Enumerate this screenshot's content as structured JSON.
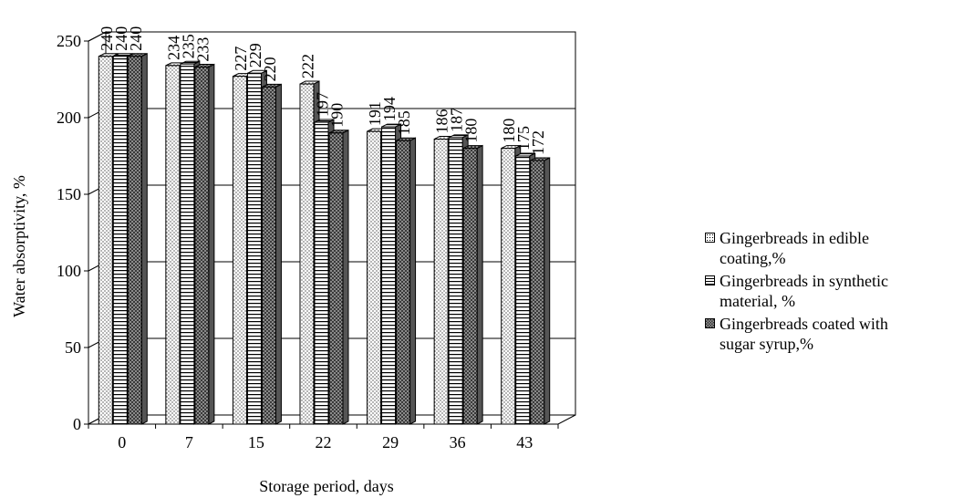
{
  "chart_data": {
    "type": "bar",
    "categories": [
      "0",
      "7",
      "15",
      "22",
      "29",
      "36",
      "43"
    ],
    "series": [
      {
        "name": "Gingerbreads in edible coating,%",
        "values": [
          240,
          234,
          227,
          222,
          191,
          186,
          180
        ],
        "pattern": "dots"
      },
      {
        "name": "Gingerbreads in synthetic material, %",
        "values": [
          240,
          235,
          229,
          197,
          194,
          187,
          175
        ],
        "pattern": "horizontal-lines"
      },
      {
        "name": "Gingerbreads coated with sugar syrup,%",
        "values": [
          240,
          233,
          220,
          190,
          185,
          180,
          172
        ],
        "pattern": "crosshatch"
      }
    ],
    "xlabel": "Storage period, days",
    "ylabel": "Water absorptivity, %",
    "ylim": [
      0,
      250
    ],
    "yticks": [
      0,
      50,
      100,
      150,
      200,
      250
    ],
    "grid": true,
    "legend_position": "right"
  },
  "legend": {
    "items": [
      {
        "line1": "Gingerbreads in edible",
        "line2": "coating,%"
      },
      {
        "line1": "Gingerbreads in synthetic",
        "line2": "material, %"
      },
      {
        "line1": "Gingerbreads coated with",
        "line2": "sugar syrup,%"
      }
    ]
  }
}
